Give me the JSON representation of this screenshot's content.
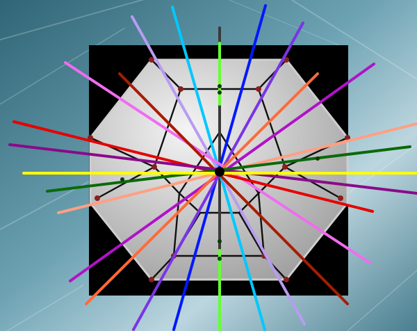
{
  "scene": {
    "background_colors": [
      "#2f6576",
      "#6da2b3",
      "#bcd6df",
      "#4a7f90"
    ],
    "panel_color": "#000000",
    "solid": {
      "name": "dodecahedron",
      "fill_light": "#f4f4f4",
      "fill_dark": "#9c9c9c",
      "edge_color": "#111111",
      "vertex_color": "#8a1f1f"
    },
    "center_color": "#000000",
    "axis_colors": {
      "vertical": "#3a3a3a",
      "vertical_segment": "#66ff33",
      "horizontal": "#ffff00"
    },
    "symmetry_axes": [
      {
        "name": "sky-blue",
        "color": "#00c8ff"
      },
      {
        "name": "blue",
        "color": "#0018ff"
      },
      {
        "name": "violet",
        "color": "#7a34e6"
      },
      {
        "name": "lavender",
        "color": "#b89cf0"
      },
      {
        "name": "magenta",
        "color": "#b012c8"
      },
      {
        "name": "pink",
        "color": "#f06cf0"
      },
      {
        "name": "orange",
        "color": "#ff6a3a"
      },
      {
        "name": "salmon",
        "color": "#ffa083"
      },
      {
        "name": "dark-red",
        "color": "#a81c00"
      },
      {
        "name": "red",
        "color": "#e60000"
      },
      {
        "name": "purple",
        "color": "#8a0a8a"
      },
      {
        "name": "dark-green",
        "color": "#0a6a0a"
      }
    ]
  }
}
